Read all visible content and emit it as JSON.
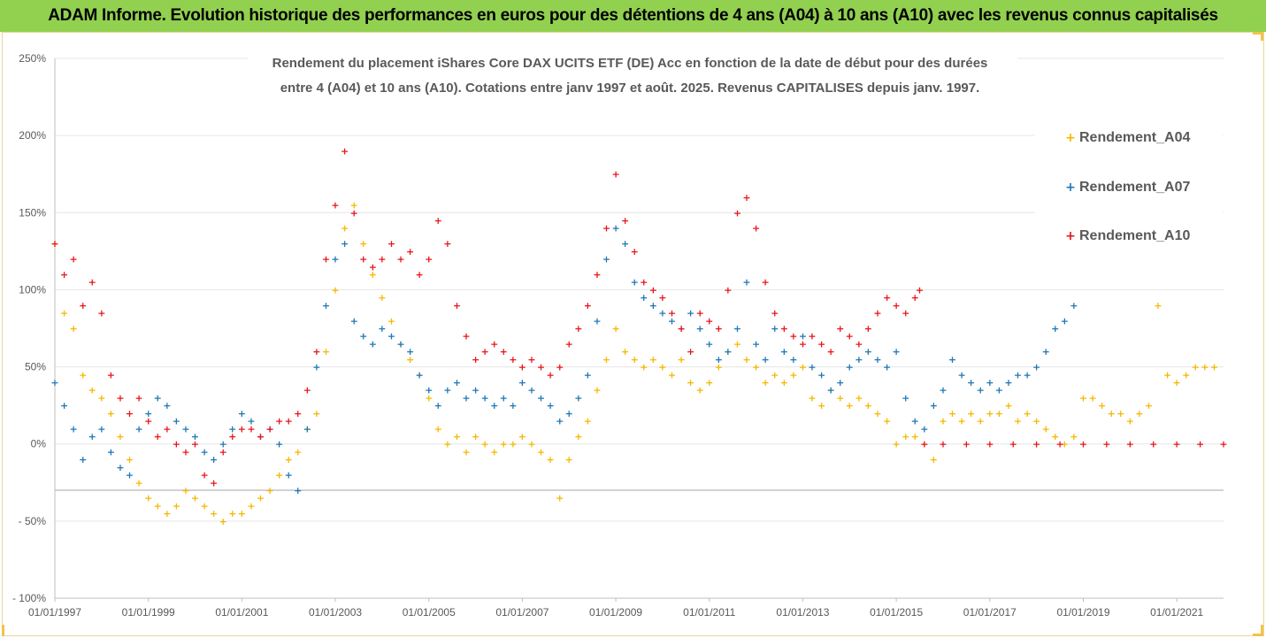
{
  "header": {
    "title": "ADAM Informe. Evolution historique des performances en euros pour des détentions de 4 ans (A04) à 10 ans (A10) avec les revenus connus capitalisés"
  },
  "chart_data": {
    "type": "scatter",
    "title_lines": [
      "Rendement du placement iShares Core DAX UCITS ETF (DE) Acc en fonction de la date de début pour des durées",
      "entre 4 (A04) et 10 ans (A10). Cotations entre janv 1997 et août. 2025. Revenus CAPITALISES depuis janv. 1997."
    ],
    "xlabel": "",
    "ylabel": "",
    "ylim": [
      -1.0,
      2.5
    ],
    "xlim": [
      1997.0,
      2022.0
    ],
    "y_ticks": [
      {
        "value": 2.5,
        "label": "250%"
      },
      {
        "value": 2.0,
        "label": "200%"
      },
      {
        "value": 1.5,
        "label": "150%"
      },
      {
        "value": 1.0,
        "label": "100%"
      },
      {
        "value": 0.5,
        "label": "50%"
      },
      {
        "value": 0.0,
        "label": "0%"
      },
      {
        "value": -0.5,
        "label": "- 50%"
      },
      {
        "value": -1.0,
        "label": "- 100%"
      }
    ],
    "x_ticks": [
      {
        "value": 1997.0,
        "label": "01/01/1997"
      },
      {
        "value": 1999.0,
        "label": "01/01/1999"
      },
      {
        "value": 2001.0,
        "label": "01/01/2001"
      },
      {
        "value": 2003.0,
        "label": "01/01/2003"
      },
      {
        "value": 2005.0,
        "label": "01/01/2005"
      },
      {
        "value": 2007.0,
        "label": "01/01/2007"
      },
      {
        "value": 2009.0,
        "label": "01/01/2009"
      },
      {
        "value": 2011.0,
        "label": "01/01/2011"
      },
      {
        "value": 2013.0,
        "label": "01/01/2013"
      },
      {
        "value": 2015.0,
        "label": "01/01/2015"
      },
      {
        "value": 2017.0,
        "label": "01/01/2017"
      },
      {
        "value": 2019.0,
        "label": "01/01/2019"
      },
      {
        "value": 2021.0,
        "label": "01/01/2021"
      }
    ],
    "reference_line": -0.3,
    "grid": true,
    "legend_position": "right",
    "series": [
      {
        "name": "Rendement_A04",
        "color": "#f5b800",
        "x": [
          1997.0,
          1997.2,
          1997.4,
          1997.6,
          1997.8,
          1998.0,
          1998.2,
          1998.4,
          1998.6,
          1998.8,
          1999.0,
          1999.2,
          1999.4,
          1999.6,
          1999.8,
          2000.0,
          2000.2,
          2000.4,
          2000.6,
          2000.8,
          2001.0,
          2001.2,
          2001.4,
          2001.6,
          2001.8,
          2002.0,
          2002.2,
          2002.4,
          2002.6,
          2002.8,
          2003.0,
          2003.2,
          2003.4,
          2003.6,
          2003.8,
          2004.0,
          2004.2,
          2004.4,
          2004.6,
          2004.8,
          2005.0,
          2005.2,
          2005.4,
          2005.6,
          2005.8,
          2006.0,
          2006.2,
          2006.4,
          2006.6,
          2006.8,
          2007.0,
          2007.2,
          2007.4,
          2007.6,
          2007.8,
          2008.0,
          2008.2,
          2008.4,
          2008.6,
          2008.8,
          2009.0,
          2009.2,
          2009.4,
          2009.6,
          2009.8,
          2010.0,
          2010.2,
          2010.4,
          2010.6,
          2010.8,
          2011.0,
          2011.2,
          2011.4,
          2011.6,
          2011.8,
          2012.0,
          2012.2,
          2012.4,
          2012.6,
          2012.8,
          2013.0,
          2013.2,
          2013.4,
          2013.6,
          2013.8,
          2014.0,
          2014.2,
          2014.4,
          2014.6,
          2014.8,
          2015.0,
          2015.2,
          2015.4,
          2015.6,
          2015.8,
          2016.0,
          2016.2,
          2016.4,
          2016.6,
          2016.8,
          2017.0,
          2017.2,
          2017.4,
          2017.6,
          2017.8,
          2018.0,
          2018.2,
          2018.4,
          2018.6,
          2018.8,
          2019.0,
          2019.2,
          2019.4,
          2019.6,
          2019.8,
          2020.0,
          2020.2,
          2020.4,
          2020.6,
          2020.8,
          2021.0,
          2021.2,
          2021.4,
          2021.6,
          2021.8
        ],
        "y": [
          1.3,
          0.85,
          0.75,
          0.45,
          0.35,
          0.3,
          0.2,
          0.05,
          -0.1,
          -0.25,
          -0.35,
          -0.4,
          -0.45,
          -0.4,
          -0.3,
          -0.35,
          -0.4,
          -0.45,
          -0.5,
          -0.45,
          -0.45,
          -0.4,
          -0.35,
          -0.3,
          -0.2,
          -0.1,
          -0.05,
          0.1,
          0.2,
          0.6,
          1.0,
          1.4,
          1.55,
          1.3,
          1.1,
          0.95,
          0.8,
          0.65,
          0.55,
          0.45,
          0.3,
          0.1,
          0.0,
          0.05,
          -0.05,
          0.05,
          0.0,
          -0.05,
          0.0,
          0.0,
          0.05,
          0.0,
          -0.05,
          -0.1,
          -0.35,
          -0.1,
          0.05,
          0.15,
          0.35,
          0.55,
          0.75,
          0.6,
          0.55,
          0.5,
          0.55,
          0.5,
          0.45,
          0.55,
          0.4,
          0.35,
          0.4,
          0.5,
          0.6,
          0.65,
          0.55,
          0.5,
          0.4,
          0.45,
          0.4,
          0.45,
          0.5,
          0.3,
          0.25,
          0.35,
          0.3,
          0.25,
          0.3,
          0.25,
          0.2,
          0.15,
          0.0,
          0.05,
          0.05,
          0.0,
          -0.1,
          0.15,
          0.2,
          0.15,
          0.2,
          0.15,
          0.2,
          0.2,
          0.25,
          0.15,
          0.2,
          0.15,
          0.1,
          0.05,
          0.0,
          0.05,
          0.3,
          0.3,
          0.25,
          0.2,
          0.2,
          0.15,
          0.2,
          0.25,
          0.9,
          0.45,
          0.4,
          0.45,
          0.5,
          0.5,
          0.5
        ]
      },
      {
        "name": "Rendement_A07",
        "color": "#1f77b4",
        "x": [
          1997.0,
          1997.2,
          1997.4,
          1997.6,
          1997.8,
          1998.0,
          1998.2,
          1998.4,
          1998.6,
          1998.8,
          1999.0,
          1999.2,
          1999.4,
          1999.6,
          1999.8,
          2000.0,
          2000.2,
          2000.4,
          2000.6,
          2000.8,
          2001.0,
          2001.2,
          2001.4,
          2001.6,
          2001.8,
          2002.0,
          2002.2,
          2002.4,
          2002.6,
          2002.8,
          2003.0,
          2003.2,
          2003.4,
          2003.6,
          2003.8,
          2004.0,
          2004.2,
          2004.4,
          2004.6,
          2004.8,
          2005.0,
          2005.2,
          2005.4,
          2005.6,
          2005.8,
          2006.0,
          2006.2,
          2006.4,
          2006.6,
          2006.8,
          2007.0,
          2007.2,
          2007.4,
          2007.6,
          2007.8,
          2008.0,
          2008.2,
          2008.4,
          2008.6,
          2008.8,
          2009.0,
          2009.2,
          2009.4,
          2009.6,
          2009.8,
          2010.0,
          2010.2,
          2010.4,
          2010.6,
          2010.8,
          2011.0,
          2011.2,
          2011.4,
          2011.6,
          2011.8,
          2012.0,
          2012.2,
          2012.4,
          2012.6,
          2012.8,
          2013.0,
          2013.2,
          2013.4,
          2013.6,
          2013.8,
          2014.0,
          2014.2,
          2014.4,
          2014.6,
          2014.8,
          2015.0,
          2015.2,
          2015.4,
          2015.6,
          2015.8,
          2016.0,
          2016.2,
          2016.4,
          2016.6,
          2016.8,
          2017.0,
          2017.2,
          2017.4,
          2017.6,
          2017.8,
          2018.0,
          2018.2,
          2018.4,
          2018.6,
          2018.8
        ],
        "y": [
          0.4,
          0.25,
          0.1,
          -0.1,
          0.05,
          0.1,
          -0.05,
          -0.15,
          -0.2,
          0.1,
          0.2,
          0.3,
          0.25,
          0.15,
          0.1,
          0.05,
          -0.05,
          -0.1,
          0.0,
          0.1,
          0.2,
          0.15,
          0.05,
          0.1,
          0.0,
          -0.2,
          -0.3,
          0.1,
          0.5,
          0.9,
          1.2,
          1.3,
          0.8,
          0.7,
          0.65,
          0.75,
          0.7,
          0.65,
          0.6,
          0.45,
          0.35,
          0.25,
          0.35,
          0.4,
          0.3,
          0.35,
          0.3,
          0.25,
          0.3,
          0.25,
          0.4,
          0.35,
          0.3,
          0.25,
          0.15,
          0.2,
          0.3,
          0.45,
          0.8,
          1.2,
          1.4,
          1.3,
          1.05,
          0.95,
          0.9,
          0.85,
          0.8,
          0.75,
          0.85,
          0.75,
          0.65,
          0.55,
          0.6,
          0.75,
          1.05,
          0.65,
          0.55,
          0.75,
          0.6,
          0.55,
          0.7,
          0.5,
          0.45,
          0.35,
          0.4,
          0.5,
          0.55,
          0.6,
          0.55,
          0.5,
          0.6,
          0.3,
          0.15,
          0.1,
          0.25,
          0.35,
          0.55,
          0.45,
          0.4,
          0.35,
          0.4,
          0.35,
          0.4,
          0.45,
          0.45,
          0.5,
          0.6,
          0.75,
          0.8,
          0.9
        ]
      },
      {
        "name": "Rendement_A10",
        "color": "#e8141b",
        "x": [
          1997.0,
          1997.2,
          1997.4,
          1997.6,
          1997.8,
          1998.0,
          1998.2,
          1998.4,
          1998.6,
          1998.8,
          1999.0,
          1999.2,
          1999.4,
          1999.6,
          1999.8,
          2000.0,
          2000.2,
          2000.4,
          2000.6,
          2000.8,
          2001.0,
          2001.2,
          2001.4,
          2001.6,
          2001.8,
          2002.0,
          2002.2,
          2002.4,
          2002.6,
          2002.8,
          2003.0,
          2003.2,
          2003.4,
          2003.6,
          2003.8,
          2004.0,
          2004.2,
          2004.4,
          2004.6,
          2004.8,
          2005.0,
          2005.2,
          2005.4,
          2005.6,
          2005.8,
          2006.0,
          2006.2,
          2006.4,
          2006.6,
          2006.8,
          2007.0,
          2007.2,
          2007.4,
          2007.6,
          2007.8,
          2008.0,
          2008.2,
          2008.4,
          2008.6,
          2008.8,
          2009.0,
          2009.2,
          2009.4,
          2009.6,
          2009.8,
          2010.0,
          2010.2,
          2010.4,
          2010.6,
          2010.8,
          2011.0,
          2011.2,
          2011.4,
          2011.6,
          2011.8,
          2012.0,
          2012.2,
          2012.4,
          2012.6,
          2012.8,
          2013.0,
          2013.2,
          2013.4,
          2013.6,
          2013.8,
          2014.0,
          2014.2,
          2014.4,
          2014.6,
          2014.8,
          2015.0,
          2015.2,
          2015.4,
          2015.5,
          2015.6,
          2016.0,
          2016.5,
          2017.0,
          2017.5,
          2018.0,
          2018.5,
          2019.0,
          2019.5,
          2020.0,
          2020.5,
          2021.0,
          2021.5,
          2022.0
        ],
        "y": [
          1.3,
          1.1,
          1.2,
          0.9,
          1.05,
          0.85,
          0.45,
          0.3,
          0.2,
          0.3,
          0.15,
          0.05,
          0.1,
          0.0,
          -0.05,
          0.0,
          -0.2,
          -0.25,
          -0.05,
          0.05,
          0.1,
          0.1,
          0.05,
          0.1,
          0.15,
          0.15,
          0.2,
          0.35,
          0.6,
          1.2,
          1.55,
          1.9,
          1.5,
          1.2,
          1.15,
          1.2,
          1.3,
          1.2,
          1.25,
          1.1,
          1.2,
          1.45,
          1.3,
          0.9,
          0.7,
          0.55,
          0.6,
          0.65,
          0.6,
          0.55,
          0.5,
          0.55,
          0.5,
          0.45,
          0.5,
          0.65,
          0.75,
          0.9,
          1.1,
          1.4,
          1.75,
          1.45,
          1.25,
          1.05,
          1.0,
          0.95,
          0.85,
          0.75,
          0.6,
          0.85,
          0.8,
          0.75,
          1.0,
          1.5,
          1.6,
          1.4,
          1.05,
          0.85,
          0.75,
          0.7,
          0.65,
          0.7,
          0.65,
          0.6,
          0.75,
          0.7,
          0.65,
          0.75,
          0.85,
          0.95,
          0.9,
          0.85,
          0.95,
          1.0,
          0.0,
          0.0,
          0.0,
          0.0,
          0.0,
          0.0,
          0.0,
          0.0,
          0.0,
          0.0,
          0.0,
          0.0,
          0.0,
          0.0
        ]
      }
    ]
  }
}
